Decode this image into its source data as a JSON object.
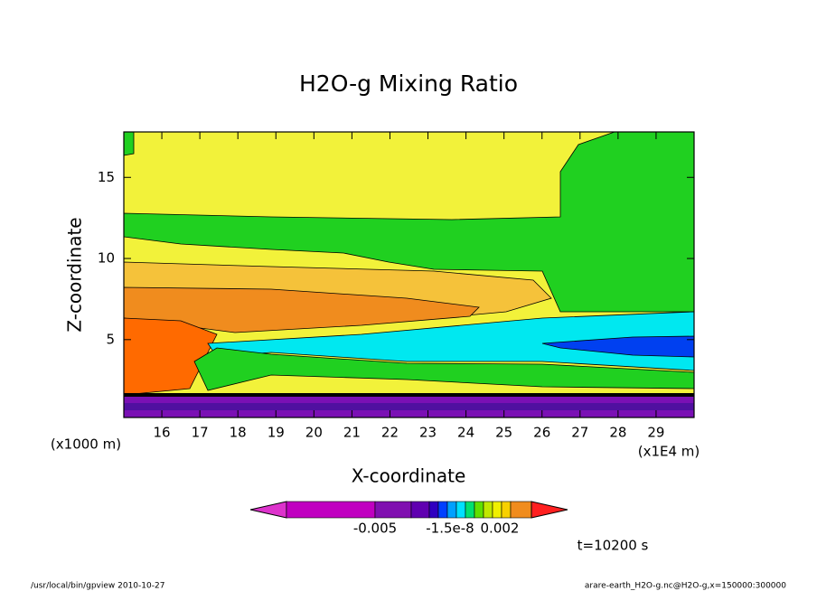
{
  "chart_data": {
    "type": "contour",
    "title": "H2O-g Mixing Ratio",
    "xlabel": "X-coordinate",
    "ylabel": "Z-coordinate",
    "xunit": "(x1E4 m)",
    "yunit": "(x1000 m)",
    "xlim": [
      15,
      30
    ],
    "ylim": [
      0.2,
      17.8
    ],
    "xticks": [
      16,
      17,
      18,
      19,
      20,
      21,
      22,
      23,
      24,
      25,
      26,
      27,
      28,
      29
    ],
    "yticks": [
      5,
      10,
      15
    ],
    "colorbar": {
      "colors": [
        "#dd33cc",
        "#c000c0",
        "#8010b0",
        "#6000b0",
        "#3000c0",
        "#0040ff",
        "#00a0ff",
        "#00e0ff",
        "#00e070",
        "#60e000",
        "#c0e800",
        "#f0f000",
        "#f8d000",
        "#f08c1e",
        "#ff2020"
      ],
      "ticks": [
        {
          "value": -0.005,
          "label": "-0.005"
        },
        {
          "value": -1.5e-08,
          "label": "-1.5e-8"
        },
        {
          "value": 0.002,
          "label": "0.002"
        }
      ]
    },
    "time_label": "t=10200 s",
    "footer_left": "/usr/local/bin/gpview  2010-10-27",
    "footer_right": "arare-earth_H2O-g.nc@H2O-g,x=150000:300000"
  }
}
